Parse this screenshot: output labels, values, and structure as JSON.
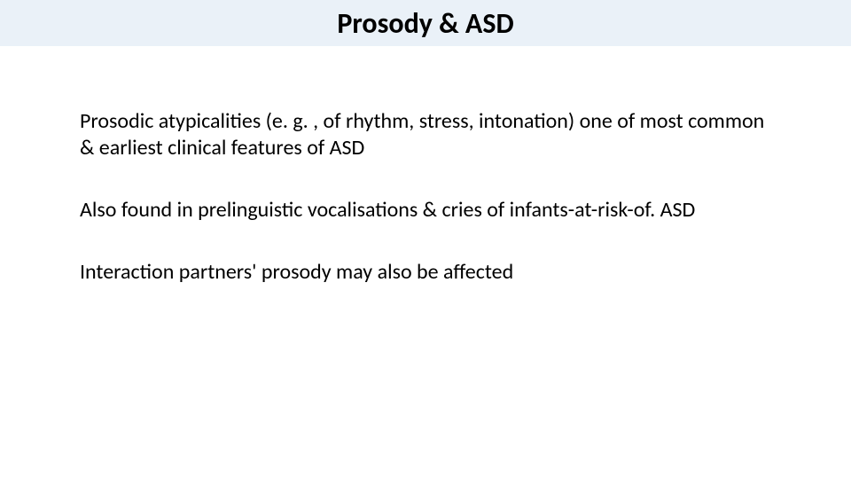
{
  "slide": {
    "title": "Prosody & ASD",
    "paragraphs": [
      "Prosodic atypicalities (e. g. , of rhythm, stress, intonation) one of most common & earliest clinical features of ASD",
      "Also found in prelinguistic vocalisations & cries of infants-at-risk-of. ASD",
      "Interaction partners' prosody may also be affected"
    ],
    "title_bar_color": "#eaf1f8",
    "background_color": "#ffffff",
    "title_fontsize": 32,
    "body_fontsize": 24,
    "text_color": "#000000"
  }
}
